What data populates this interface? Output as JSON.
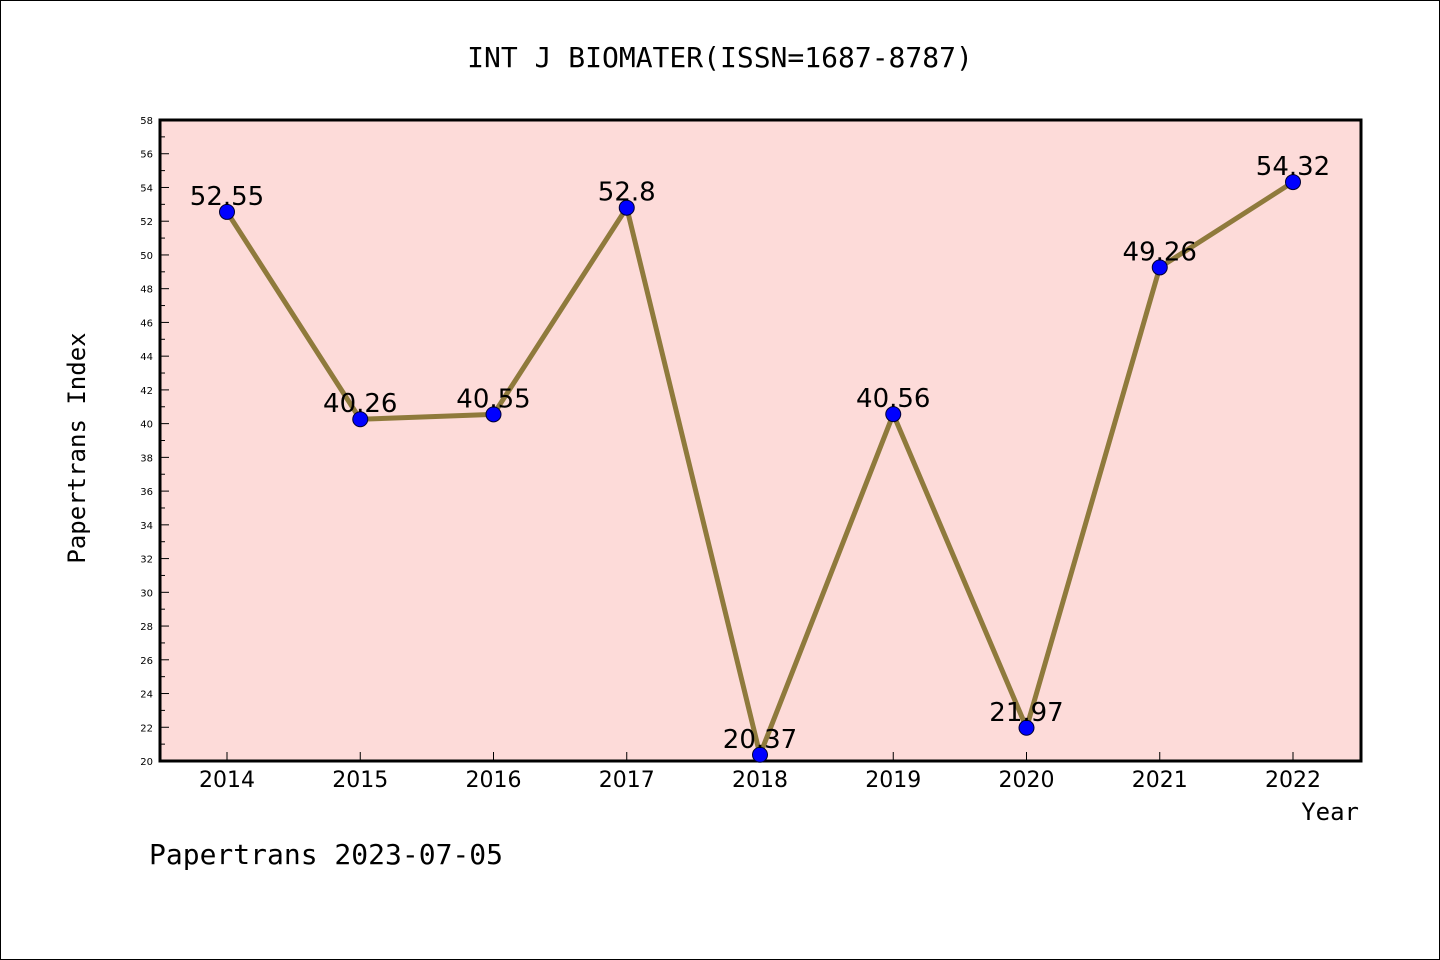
{
  "title": "INT J BIOMATER(ISSN=1687-8787)",
  "footer": "Papertrans 2023-07-05",
  "chart_data": {
    "type": "line",
    "title": "INT J BIOMATER(ISSN=1687-8787)",
    "xlabel": "Year",
    "ylabel": "Papertrans Index",
    "categories": [
      "2014",
      "2015",
      "2016",
      "2017",
      "2018",
      "2019",
      "2020",
      "2021",
      "2022"
    ],
    "values": [
      52.55,
      40.26,
      40.55,
      52.8,
      20.37,
      40.56,
      21.97,
      49.26,
      54.32
    ],
    "data_labels": [
      "52.55",
      "40.26",
      "40.55",
      "52.8",
      "20.37",
      "40.56",
      "21.97",
      "49.26",
      "54.32"
    ],
    "ylim": [
      20,
      58
    ],
    "yticks": [
      20,
      22,
      24,
      26,
      28,
      30,
      32,
      34,
      36,
      38,
      40,
      42,
      44,
      46,
      48,
      50,
      52,
      54,
      56,
      58
    ],
    "grid": false,
    "colors": {
      "plot_background": "#fddbd9",
      "line": "#8f7a3c",
      "marker": "#0000ff",
      "frame": "#000000"
    }
  }
}
